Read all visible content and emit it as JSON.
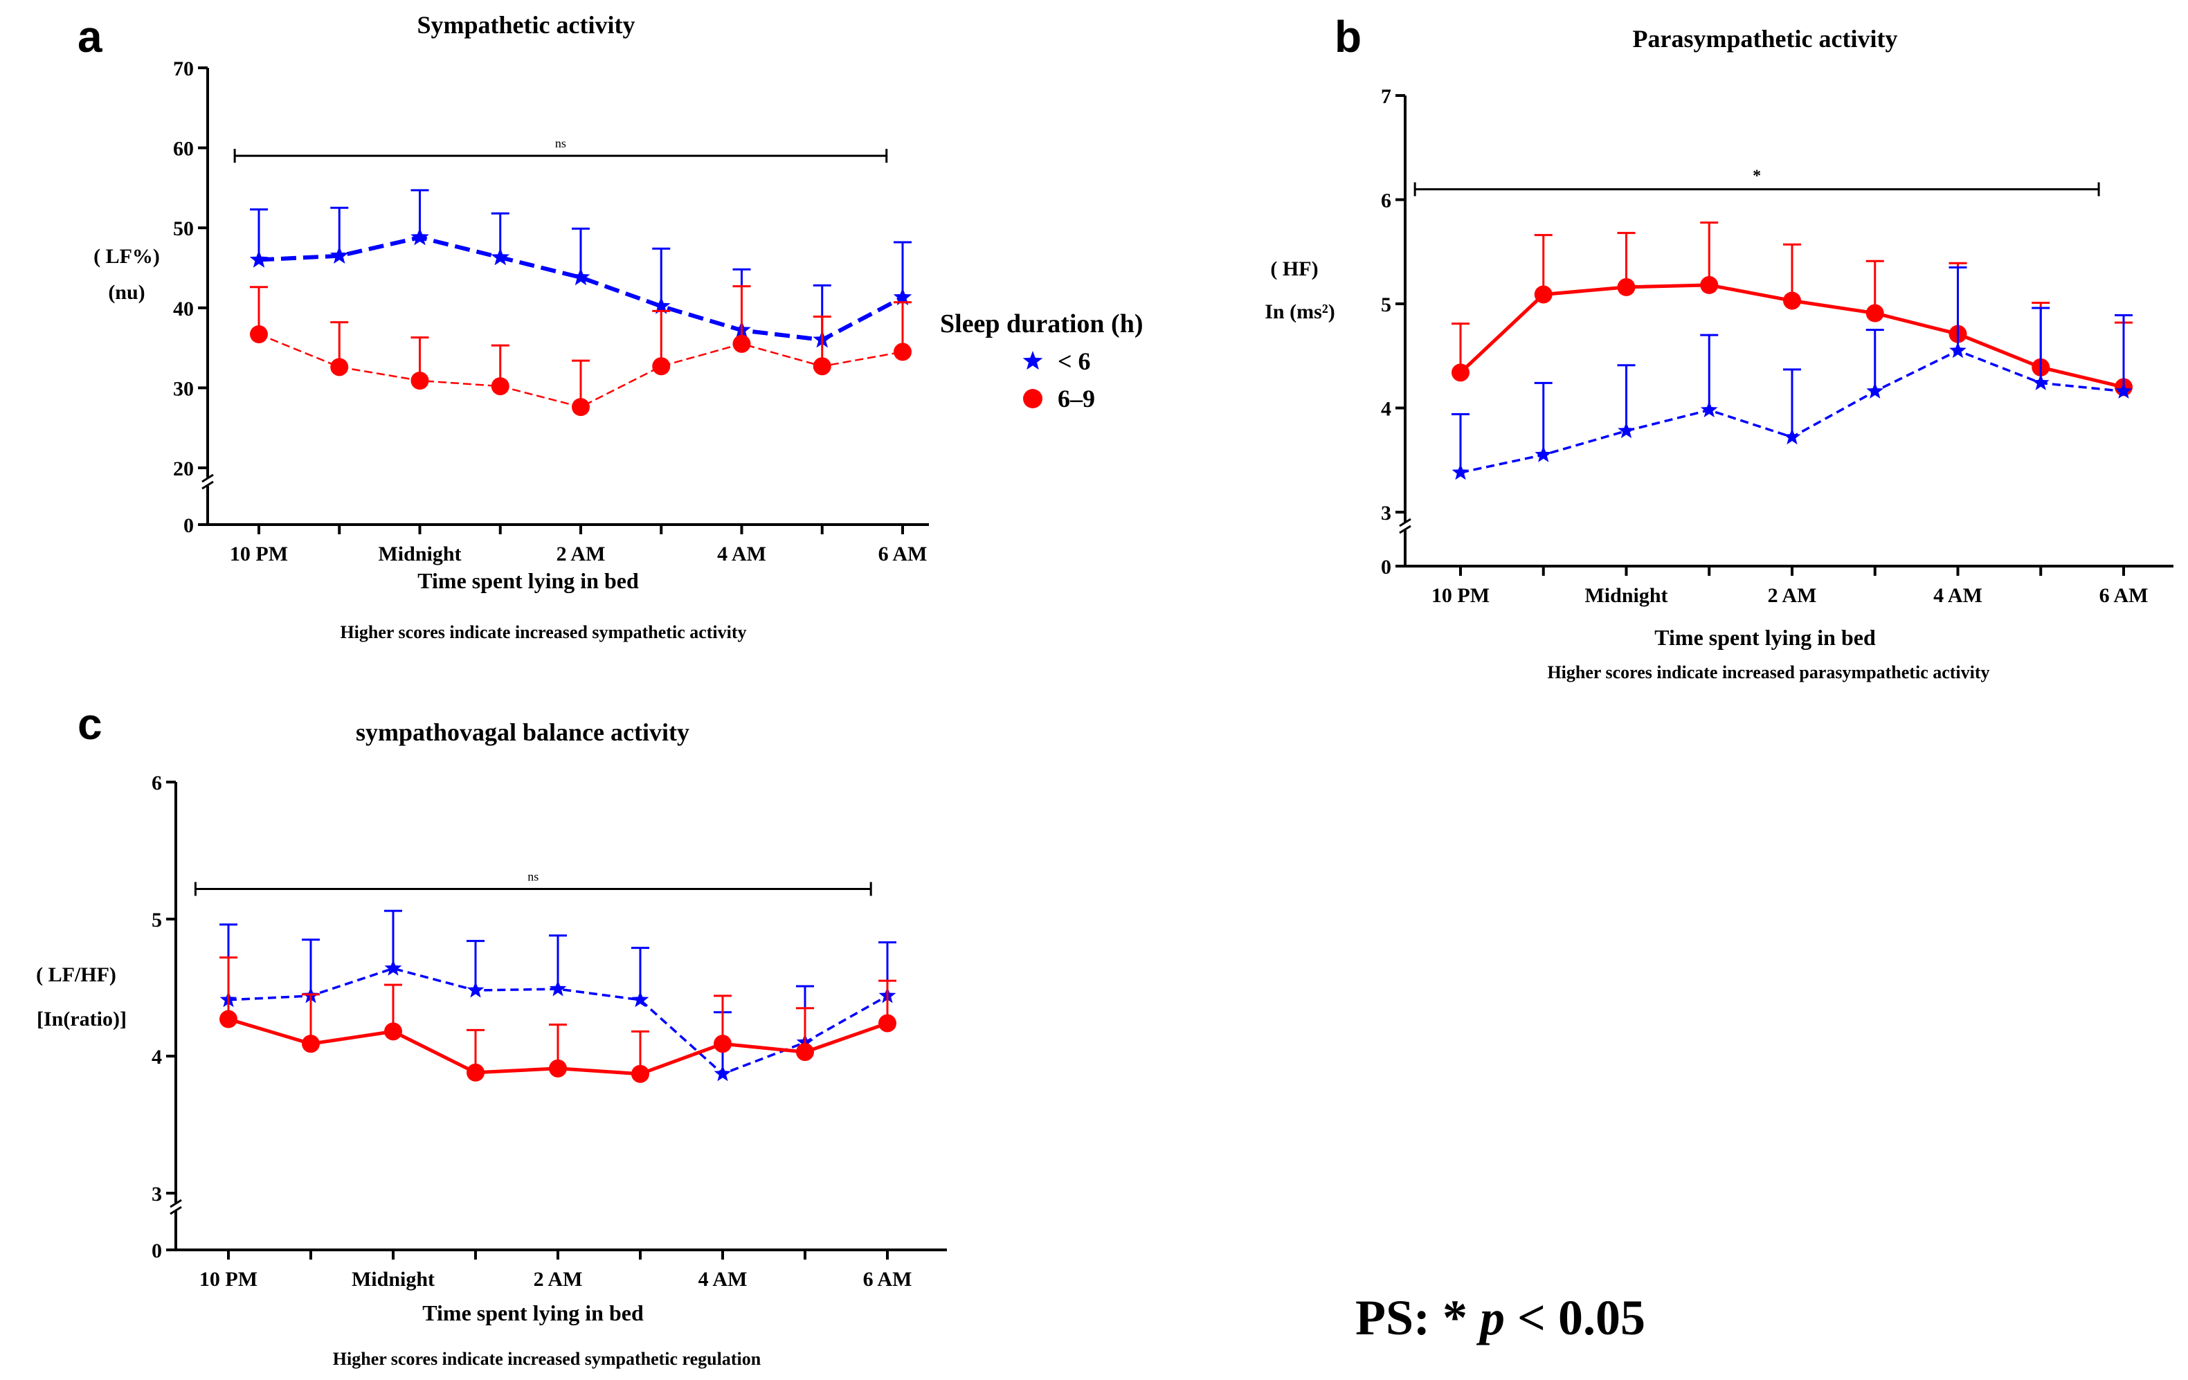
{
  "legend": {
    "title": "Sleep duration (h)",
    "items": [
      {
        "label": "< 6",
        "color": "#0000ff",
        "marker": "star-icon"
      },
      {
        "label": "6–9",
        "color": "#ff0000",
        "marker": "circle-icon"
      }
    ]
  },
  "footnote": {
    "prefix": "PS: * ",
    "p": "p",
    "suffix": " < 0.05"
  },
  "chart_data": [
    {
      "id": "a",
      "type": "line",
      "panel_letter": "a",
      "title": "Sympathetic activity",
      "xlabel": "Time spent lying in bed",
      "note": "Higher scores indicate increased sympathetic activity",
      "ylabel_lines": [
        "( LF%)",
        "(nu)"
      ],
      "x_tick_labels": [
        "10 PM",
        "Midnight",
        "2 AM",
        "4 AM",
        "6 AM"
      ],
      "x_tick_positions": [
        0,
        2,
        4,
        6,
        8
      ],
      "x_points": [
        0,
        1,
        2,
        3,
        4,
        5,
        6,
        7,
        8
      ],
      "ylim": [
        0,
        70
      ],
      "axis_break": [
        0,
        20
      ],
      "y_ticks": [
        0,
        20,
        30,
        40,
        50,
        60,
        70
      ],
      "significance": {
        "label": "ns",
        "x_start": -0.3,
        "x_end": 7.8,
        "y": 59
      },
      "series": [
        {
          "name": "< 6",
          "color": "#0000ff",
          "marker": "star",
          "dash": "thick-dash",
          "values": [
            46,
            46.5,
            48.8,
            46.3,
            43.8,
            40.2,
            37.2,
            36,
            41.3
          ],
          "error": [
            6.3,
            6,
            5.9,
            5.5,
            6.1,
            7.2,
            7.6,
            6.8,
            6.9
          ]
        },
        {
          "name": "6–9",
          "color": "#ff0000",
          "marker": "circle",
          "dash": "thin-dash",
          "values": [
            36.7,
            32.6,
            30.9,
            30.2,
            27.6,
            32.7,
            35.5,
            32.7,
            34.5
          ],
          "error": [
            5.9,
            5.6,
            5.4,
            5.1,
            5.8,
            6.9,
            7.2,
            6.2,
            6.2
          ]
        }
      ]
    },
    {
      "id": "b",
      "type": "line",
      "panel_letter": "b",
      "title": "Parasympathetic activity",
      "xlabel": "Time spent lying in bed",
      "note": "Higher scores indicate increased parasympathetic activity",
      "ylabel_lines": [
        "( HF)",
        "In (ms²)"
      ],
      "x_tick_labels": [
        "10 PM",
        "Midnight",
        "2 AM",
        "4 AM",
        "6 AM"
      ],
      "x_tick_positions": [
        0,
        2,
        4,
        6,
        8
      ],
      "x_points": [
        0,
        1,
        2,
        3,
        4,
        5,
        6,
        7,
        8
      ],
      "ylim": [
        0,
        7
      ],
      "axis_break": [
        0,
        3
      ],
      "y_ticks": [
        0,
        3,
        4,
        5,
        6,
        7
      ],
      "significance": {
        "label": "*",
        "x_start": -0.55,
        "x_end": 7.7,
        "y": 6.1
      },
      "series": [
        {
          "name": "6–9",
          "color": "#ff0000",
          "marker": "circle",
          "dash": "solid",
          "values": [
            4.34,
            5.09,
            5.16,
            5.18,
            5.03,
            4.91,
            4.71,
            4.39,
            4.2
          ],
          "error": [
            0.47,
            0.57,
            0.52,
            0.6,
            0.54,
            0.5,
            0.68,
            0.62,
            0.62
          ]
        },
        {
          "name": "< 6",
          "color": "#0000ff",
          "marker": "star",
          "dash": "dashed",
          "values": [
            3.38,
            3.55,
            3.78,
            3.98,
            3.72,
            4.16,
            4.55,
            4.24,
            4.16
          ],
          "error": [
            0.56,
            0.69,
            0.63,
            0.72,
            0.65,
            0.59,
            0.8,
            0.72,
            0.73
          ]
        }
      ]
    },
    {
      "id": "c",
      "type": "line",
      "panel_letter": "c",
      "title": "sympathovagal balance  activity",
      "xlabel": "Time spent lying in bed",
      "note": "Higher scores indicate increased sympathetic regulation",
      "ylabel_lines": [
        "( LF/HF)",
        "[In(ratio)]"
      ],
      "x_tick_labels": [
        "10 PM",
        "Midnight",
        "2 AM",
        "4 AM",
        "6 AM"
      ],
      "x_tick_positions": [
        0,
        2,
        4,
        6,
        8
      ],
      "x_points": [
        0,
        1,
        2,
        3,
        4,
        5,
        6,
        7,
        8
      ],
      "ylim": [
        0,
        6
      ],
      "axis_break": [
        0,
        3
      ],
      "y_ticks": [
        0,
        3,
        4,
        5,
        6
      ],
      "significance": {
        "label": "ns",
        "x_start": -0.4,
        "x_end": 7.8,
        "y": 5.22
      },
      "series": [
        {
          "name": "< 6",
          "color": "#0000ff",
          "marker": "star",
          "dash": "dashed",
          "values": [
            4.41,
            4.44,
            4.64,
            4.48,
            4.49,
            4.41,
            3.87,
            4.1,
            4.44
          ],
          "error": [
            0.55,
            0.41,
            0.42,
            0.36,
            0.39,
            0.38,
            0.45,
            0.41,
            0.39
          ]
        },
        {
          "name": "6–9",
          "color": "#ff0000",
          "marker": "circle",
          "dash": "solid",
          "values": [
            4.27,
            4.09,
            4.18,
            3.88,
            3.91,
            3.87,
            4.09,
            4.03,
            4.24
          ],
          "error": [
            0.45,
            0.36,
            0.34,
            0.31,
            0.32,
            0.31,
            0.35,
            0.32,
            0.31
          ]
        }
      ]
    }
  ]
}
